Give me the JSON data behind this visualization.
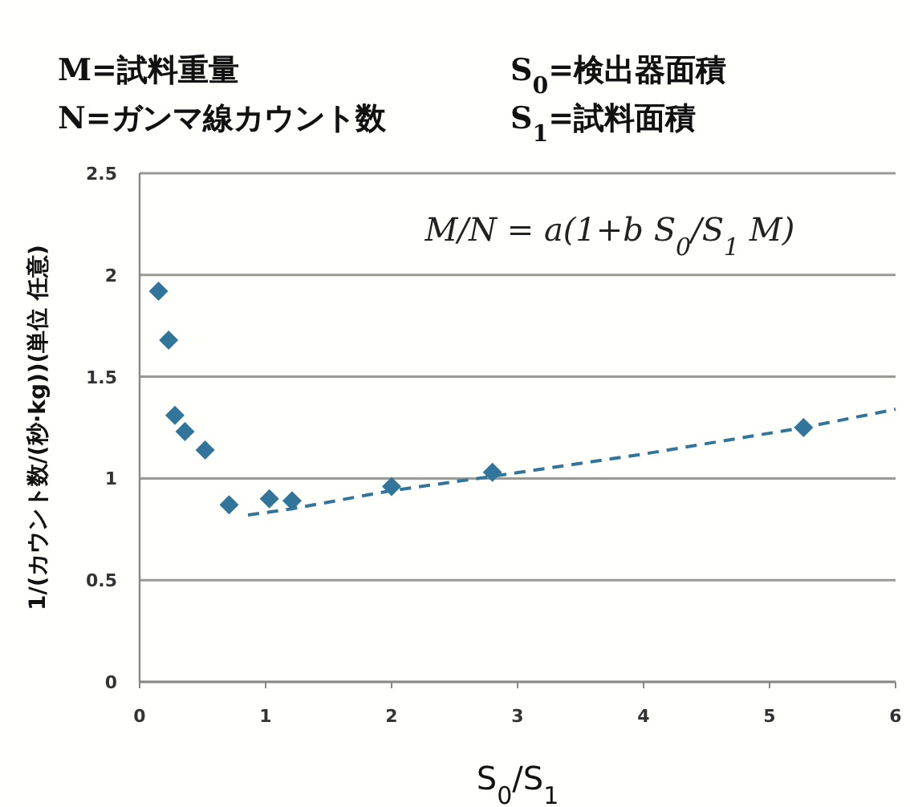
{
  "chart_data": {
    "type": "scatter",
    "annotations": [
      "M=試料重量",
      "N=ガンマ線カウント数",
      "S$_{0}$=検出器面積",
      "S$_{1}$=試料面積",
      "M/N = a(1+b S$_{0}$/S$_{1}$ M)"
    ],
    "xlabel": "S$_{0}$/S$_{1}$",
    "ylabel": "1/(カウント数/(秒·kg))(単位 任意)",
    "xlim": [
      0,
      6
    ],
    "ylim": [
      0,
      2.5
    ],
    "xticks": [
      0,
      1,
      2,
      3,
      4,
      5,
      6
    ],
    "yticks": [
      0,
      0.5,
      1,
      1.5,
      2,
      2.5
    ],
    "grid": "y",
    "marker": "diamond",
    "series": [
      {
        "color": "#31759b",
        "x": [
          0.15,
          0.23,
          0.28,
          0.36,
          0.52,
          0.71,
          1.03,
          1.21,
          2.0,
          2.8,
          5.27
        ],
        "values": [
          1.92,
          1.68,
          1.31,
          1.23,
          1.14,
          0.87,
          0.9,
          0.89,
          0.96,
          1.03,
          1.25
        ]
      },
      {
        "type": "line",
        "color": "#31759b",
        "line_style": "dashed",
        "marker": "none",
        "x": [
          0.86,
          1.2,
          2.0,
          2.8,
          4.0,
          5.27,
          6.0
        ],
        "values": [
          0.82,
          0.85,
          0.94,
          1.01,
          1.12,
          1.25,
          1.34
        ]
      }
    ]
  }
}
